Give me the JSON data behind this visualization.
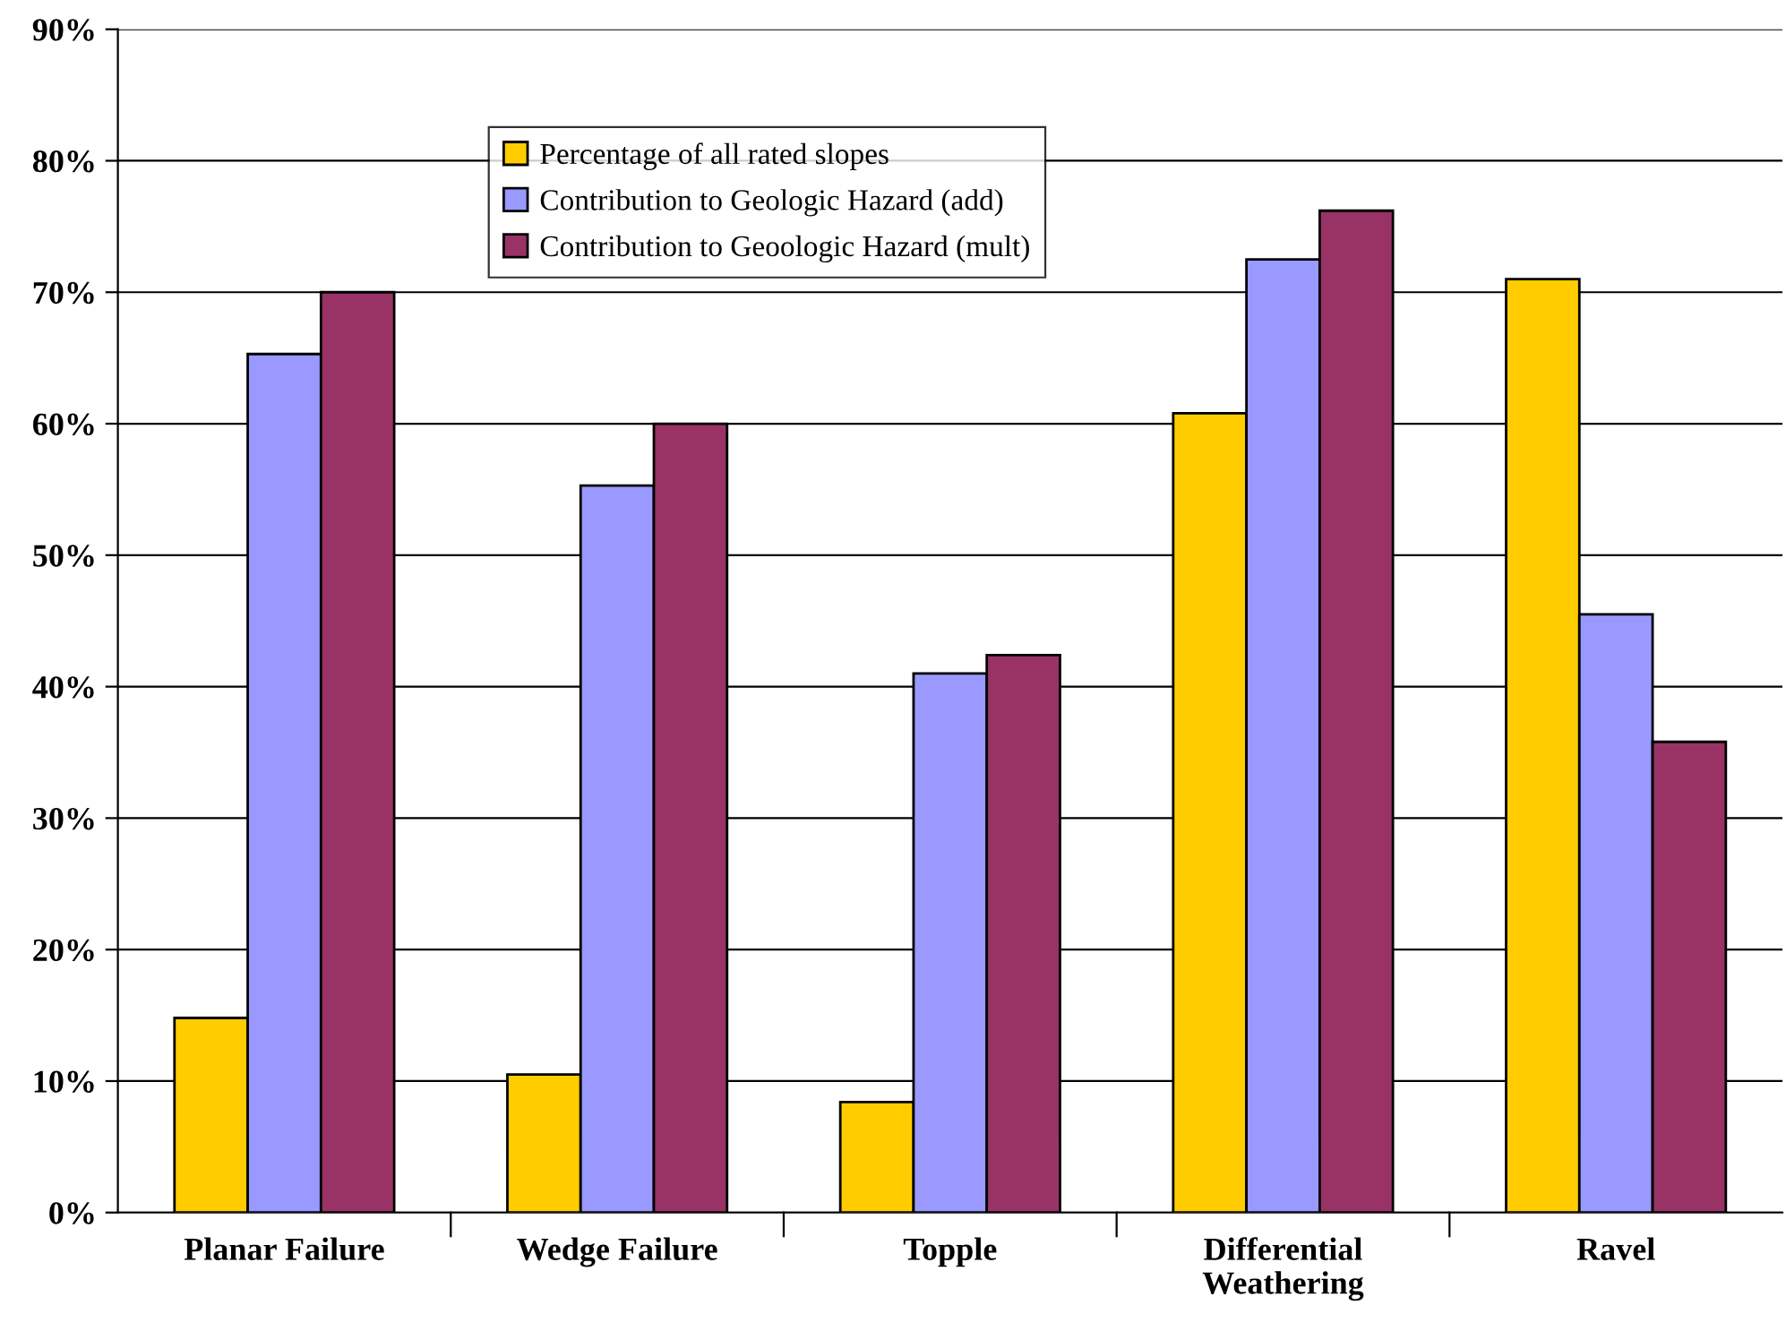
{
  "chart_data": {
    "type": "bar",
    "categories": [
      "Planar Failure",
      "Wedge Failure",
      "Topple",
      "Differential\nWeathering",
      "Ravel"
    ],
    "series": [
      {
        "name": "Percentage of all rated slopes",
        "color": "#ffcc00",
        "values": [
          14.8,
          10.5,
          8.4,
          60.8,
          71.0
        ]
      },
      {
        "name": "Contribution to Geologic Hazard (add)",
        "color": "#9999ff",
        "values": [
          65.3,
          55.3,
          41.0,
          72.5,
          45.5
        ]
      },
      {
        "name": "Contribution to Geoologic Hazard (mult)",
        "color": "#993366",
        "values": [
          70.0,
          60.0,
          42.4,
          76.2,
          35.8
        ]
      }
    ],
    "ylim": [
      0,
      90
    ],
    "yticks": [
      {
        "value": 0,
        "label": "0%"
      },
      {
        "value": 10,
        "label": "10%"
      },
      {
        "value": 20,
        "label": "20%"
      },
      {
        "value": 30,
        "label": "30%"
      },
      {
        "value": 40,
        "label": "40%"
      },
      {
        "value": 50,
        "label": "50%"
      },
      {
        "value": 60,
        "label": "60%"
      },
      {
        "value": 70,
        "label": "70%"
      },
      {
        "value": 80,
        "label": "80%"
      },
      {
        "value": 90,
        "label": "90%"
      }
    ],
    "grid": "y",
    "legend": "top"
  }
}
